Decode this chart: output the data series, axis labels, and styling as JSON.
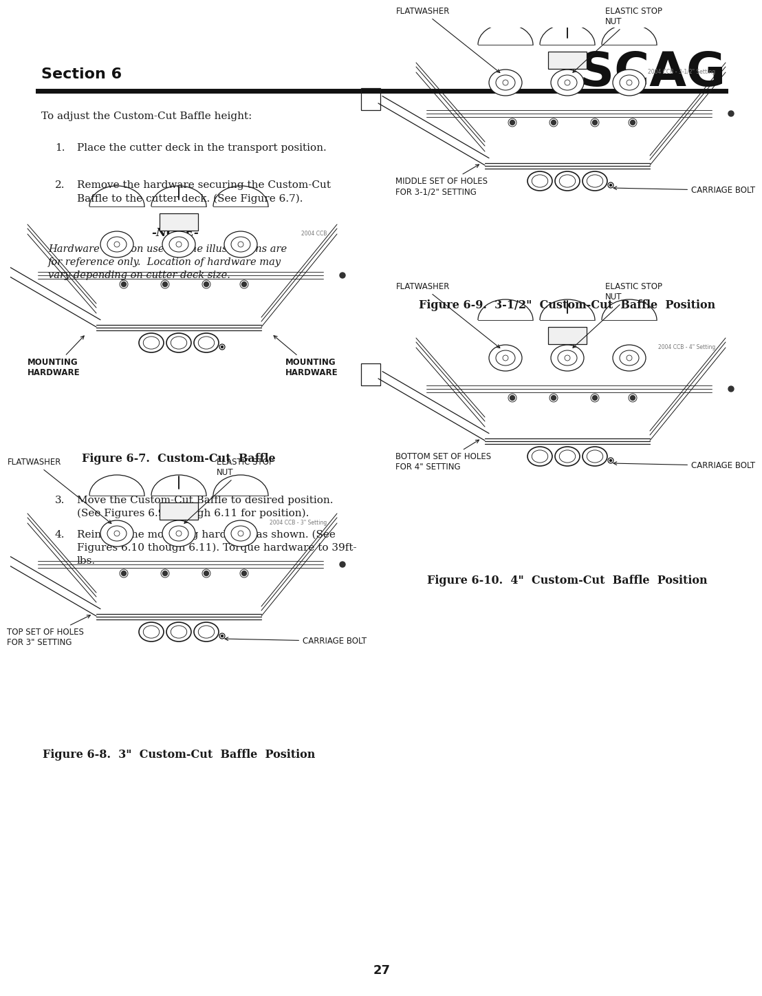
{
  "page_number": "27",
  "section_title": "Section 6",
  "scag_logo": "SCAG",
  "background_color": "#ffffff",
  "text_color": "#1a1a1a",
  "intro_text": "To adjust the Custom-Cut Baffle height:",
  "step1": "Place the cutter deck in the transport position.",
  "step2_line1": "Remove the hardware securing the Custom-Cut",
  "step2_line2": "Baffle to the cutter deck. (See Figure 6.7).",
  "note_header": "-NOTE-",
  "note_line1": "Hardware location used in the illustrations are",
  "note_line2": "for reference only.  Location of hardware may",
  "note_line3": "vary depending on cutter deck size.",
  "fig67_caption": "Figure 6-7.  Custom-Cut  Baffle",
  "fig68_caption": "Figure 6-8.  3\"  Custom-Cut  Baffle  Position",
  "fig69_caption": "Figure 6-9.  3-1/2\"  Custom-Cut  Baffle  Position",
  "fig610_caption": "Figure 6-10.  4\"  Custom-Cut  Baffle  Position",
  "step3_line1": "Move the Custom-Cut Baffle to desired position.",
  "step3_line2": "(See Figures 6.9 through 6.11 for position).",
  "step4_line1": "Reinstall the mounting hardware as shown. (See",
  "step4_line2": "Figures 6.10 though 6.11). Torque hardware to 39ft-",
  "step4_line3": "lbs.",
  "fig67_label_l": "MOUNTING\nHARDWARE",
  "fig67_label_r": "MOUNTING\nHARDWARE",
  "fig68_label_holes": "TOP SET OF HOLES\nFOR 3\" SETTING",
  "fig69_label_holes": "MIDDLE SET OF HOLES\nFOR 3-1/2\" SETTING",
  "fig610_label_holes": "BOTTOM SET OF HOLES\nFOR 4\" SETTING",
  "label_carriage_bolt": "CARRIAGE BOLT",
  "label_flatwasher": "FLATWASHER",
  "label_elastic_stop": "ELASTIC STOP\nNUT",
  "code_67": "2004 CCB",
  "code_68": "2004 CCB - 3\" Setting",
  "code_69": "2004 CCB - 3-1/2\" Setting",
  "code_610": "2004 CCB - 4\" Setting"
}
